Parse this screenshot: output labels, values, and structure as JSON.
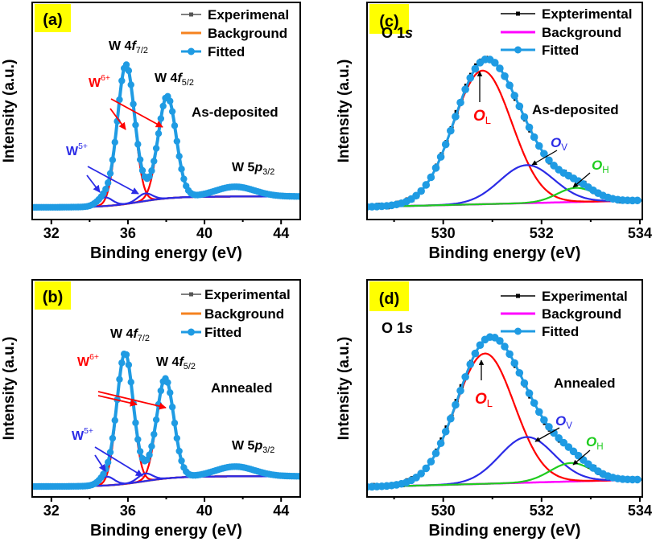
{
  "colors": {
    "fitted": "#1f9be3",
    "background_ab": "#f5821f",
    "background_cd": "#ff00ff",
    "experimental_ab": "#555555",
    "experimental_cd": "#000000",
    "red": "#ff0000",
    "blue": "#2b2be6",
    "green": "#1ecc1e",
    "panel_label_bg": "#ffff00"
  },
  "chart_data": [
    {
      "type": "line",
      "panel": "(a)",
      "xlabel": "Binding energy (eV)",
      "ylabel": "Intensity (a.u.)",
      "xlim": [
        31,
        45
      ],
      "ylim": [
        0,
        1
      ],
      "xticks": [
        "32",
        "36",
        "40",
        "44"
      ],
      "yticks": "none",
      "legend": {
        "placement": "top-right",
        "entries": [
          "Experimenal",
          "Background",
          "Fitted"
        ]
      },
      "annotations": {
        "peak1": {
          "main": "W 4",
          "it": "f",
          "sub": "7/2"
        },
        "peak2": {
          "main": "W 4",
          "it": "f",
          "sub": "5/2"
        },
        "peak3": {
          "main": "W 5",
          "it": "p",
          "sub": "3/2"
        },
        "w6": {
          "main": "W",
          "sup": "6+"
        },
        "w5": {
          "main": "W",
          "sup": "5+"
        },
        "state": "As-deposited"
      },
      "background": {
        "type": "shirley",
        "low": 0.056,
        "high": 0.106,
        "center": 36.6,
        "range": [
          34,
          43
        ]
      },
      "components": [
        {
          "label": "W6+ 4f7/2",
          "color": "red",
          "center": 35.9,
          "height": 0.64,
          "fwhm": 1.05
        },
        {
          "label": "W6+ 4f5/2",
          "color": "red",
          "center": 38.05,
          "height": 0.47,
          "fwhm": 1.1
        },
        {
          "label": "W5+ 4f7/2",
          "color": "blue",
          "center": 34.8,
          "height": 0.04,
          "fwhm": 0.9
        },
        {
          "label": "W5+ 4f5/2",
          "color": "blue",
          "center": 36.9,
          "height": 0.035,
          "fwhm": 0.9
        },
        {
          "label": "W 5p3/2",
          "color": "none",
          "center": 41.6,
          "height": 0.045,
          "fwhm": 2.4
        }
      ]
    },
    {
      "type": "line",
      "panel": "(b)",
      "xlabel": "Binding energy (eV)",
      "ylabel": "Intensity (a.u.)",
      "xlim": [
        31,
        45
      ],
      "ylim": [
        0,
        1
      ],
      "xticks": [
        "32",
        "36",
        "40",
        "44"
      ],
      "yticks": "none",
      "legend": {
        "placement": "top-right",
        "entries": [
          "Experimental",
          "Background",
          "Fitted"
        ]
      },
      "annotations": {
        "peak1": {
          "main": "W 4",
          "it": "f",
          "sub": "7/2"
        },
        "peak2": {
          "main": "W 4",
          "it": "f",
          "sub": "5/2"
        },
        "peak3": {
          "main": "W 5",
          "it": "p",
          "sub": "3/2"
        },
        "w6": {
          "main": "W",
          "sup": "6+"
        },
        "w5": {
          "main": "W",
          "sup": "5+"
        },
        "state": "Annealed"
      },
      "background": {
        "type": "shirley",
        "low": 0.048,
        "high": 0.095,
        "center": 36.8,
        "range": [
          34,
          43
        ]
      },
      "components": [
        {
          "label": "W6+ 4f7/2",
          "color": "red",
          "center": 35.85,
          "height": 0.6,
          "fwhm": 1.0
        },
        {
          "label": "W6+ 4f5/2",
          "color": "red",
          "center": 37.95,
          "height": 0.46,
          "fwhm": 1.05
        },
        {
          "label": "W5+ 4f7/2",
          "color": "blue",
          "center": 34.9,
          "height": 0.04,
          "fwhm": 0.9
        },
        {
          "label": "W5+ 4f5/2",
          "color": "blue",
          "center": 36.9,
          "height": 0.035,
          "fwhm": 0.9
        },
        {
          "label": "W 5p3/2",
          "color": "none",
          "center": 41.6,
          "height": 0.045,
          "fwhm": 2.4
        }
      ]
    },
    {
      "type": "line",
      "panel": "(c)",
      "xlabel": "Binding energy (eV)",
      "ylabel": "Intensity (a.u.)",
      "xlim": [
        528.45,
        534.05
      ],
      "ylim": [
        0,
        1
      ],
      "xticks": [
        "530",
        "532",
        "534"
      ],
      "yticks": "none",
      "legend": {
        "placement": "top-right",
        "entries": [
          "Expterimental",
          "Background",
          "Fitted"
        ]
      },
      "annotations": {
        "title": {
          "main": "O 1",
          "it": "s"
        },
        "ol": {
          "it": "O",
          "sub": "L"
        },
        "ov": {
          "it": "O",
          "sub": "V"
        },
        "oh": {
          "it": "O",
          "sub": "H"
        },
        "state": "As-deposited"
      },
      "background": {
        "type": "linear",
        "start": 0.058,
        "end": 0.088
      },
      "components": [
        {
          "label": "OL",
          "color": "red",
          "center": 530.8,
          "height": 0.615,
          "fwhm": 1.4
        },
        {
          "label": "OV",
          "color": "blue",
          "center": 531.7,
          "height": 0.175,
          "fwhm": 1.3
        },
        {
          "label": "OH",
          "color": "green",
          "center": 532.7,
          "height": 0.065,
          "fwhm": 0.9
        }
      ]
    },
    {
      "type": "line",
      "panel": "(d)",
      "xlabel": "Binding energy (eV)",
      "ylabel": "Intensity (a.u.)",
      "xlim": [
        528.45,
        534.05
      ],
      "ylim": [
        0,
        1
      ],
      "xticks": [
        "530",
        "532",
        "534"
      ],
      "yticks": "none",
      "legend": {
        "placement": "top-right",
        "entries": [
          "Experimental",
          "Background",
          "Fitted"
        ]
      },
      "annotations": {
        "title": {
          "main": "O 1",
          "it": "s"
        },
        "ol": {
          "it": "O",
          "sub": "L"
        },
        "ov": {
          "it": "O",
          "sub": "V"
        },
        "oh": {
          "it": "O",
          "sub": "H"
        },
        "state": "Annealed"
      },
      "background": {
        "type": "linear",
        "start": 0.046,
        "end": 0.08
      },
      "components": [
        {
          "label": "OL",
          "color": "red",
          "center": 530.85,
          "height": 0.6,
          "fwhm": 1.4
        },
        {
          "label": "OV",
          "color": "blue",
          "center": 531.7,
          "height": 0.21,
          "fwhm": 1.3
        },
        {
          "label": "OH",
          "color": "green",
          "center": 532.6,
          "height": 0.085,
          "fwhm": 1.0
        }
      ]
    }
  ]
}
